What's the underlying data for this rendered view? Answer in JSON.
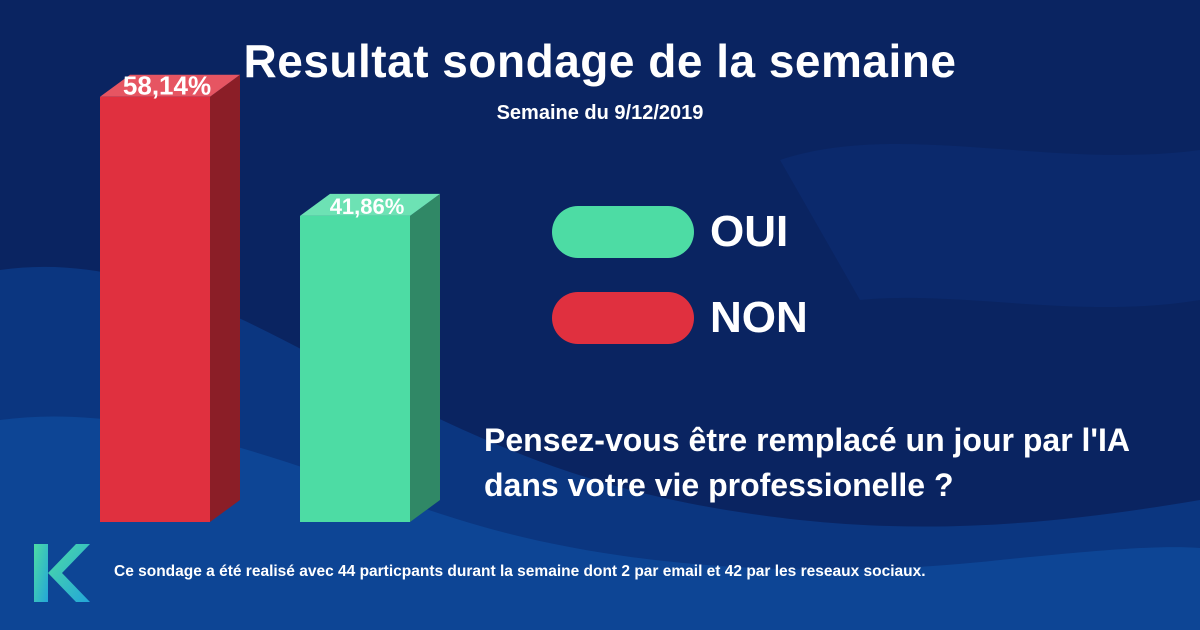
{
  "title": "Resultat sondage de la semaine",
  "subtitle": "Semaine du 9/12/2019",
  "chart_data": {
    "type": "bar",
    "categories": [
      "NON",
      "OUI"
    ],
    "values": [
      58.14,
      41.86
    ],
    "value_labels": [
      "58,14%",
      "41,86%"
    ],
    "colors": [
      "#e0303f",
      "#4ddca4"
    ],
    "ylim": [
      0,
      70
    ],
    "legend_position": "right"
  },
  "legend": [
    {
      "label": "OUI",
      "color": "#4ddca4"
    },
    {
      "label": "NON",
      "color": "#e0303f"
    }
  ],
  "question": "Pensez-vous être remplacé un jour par l'IA dans votre vie professionelle ?",
  "footnote": "Ce sondage a été realisé avec 44 particpants durant la semaine dont 2 par email et 42 par les reseaux sociaux."
}
